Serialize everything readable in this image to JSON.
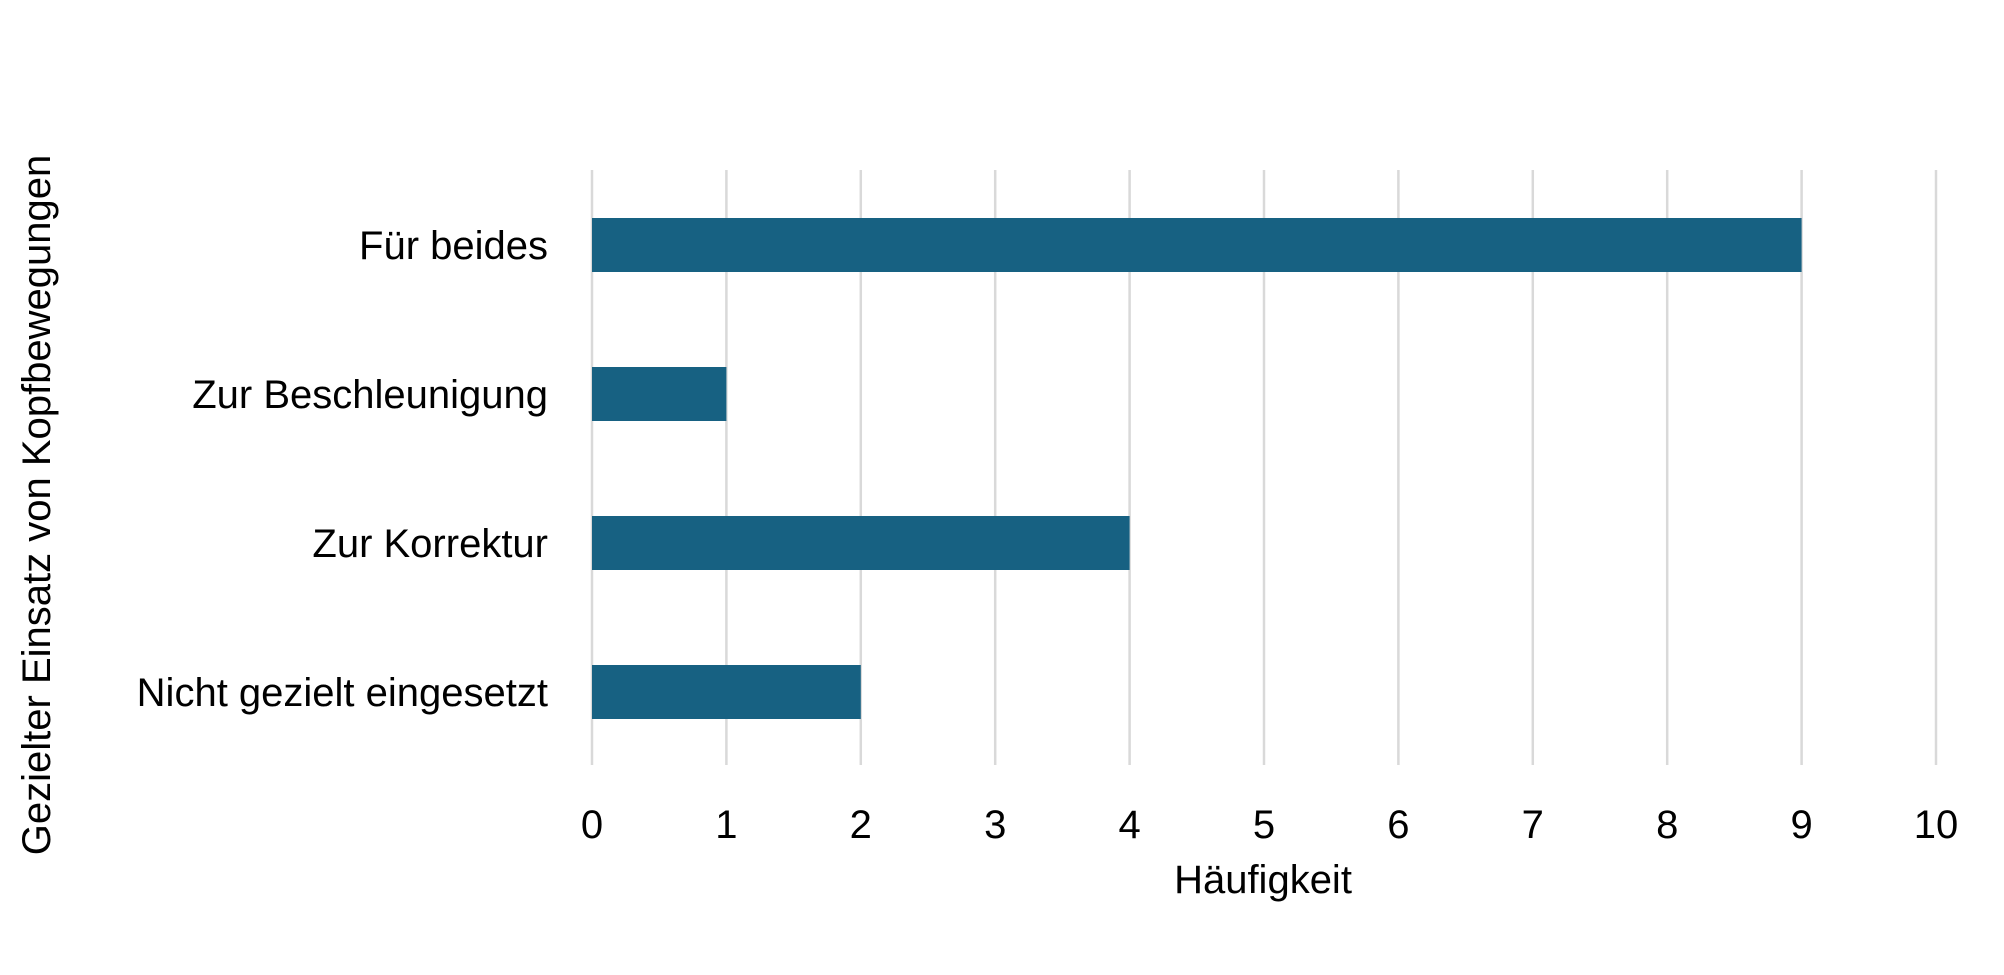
{
  "chart_data": {
    "type": "bar",
    "orientation": "horizontal",
    "categories": [
      "Für beides",
      "Zur Beschleunigung",
      "Zur Korrektur",
      "Nicht gezielt eingesetzt"
    ],
    "values": [
      9,
      1,
      4,
      2
    ],
    "xlabel": "Häufigkeit",
    "ylabel": "Gezielter Einsatz von Kopfbewegungen",
    "xlim": [
      0,
      10
    ],
    "xticks": [
      0,
      1,
      2,
      3,
      4,
      5,
      6,
      7,
      8,
      9,
      10
    ],
    "grid": true,
    "bar_color": "#176182",
    "grid_color": "#d9d9d9"
  }
}
